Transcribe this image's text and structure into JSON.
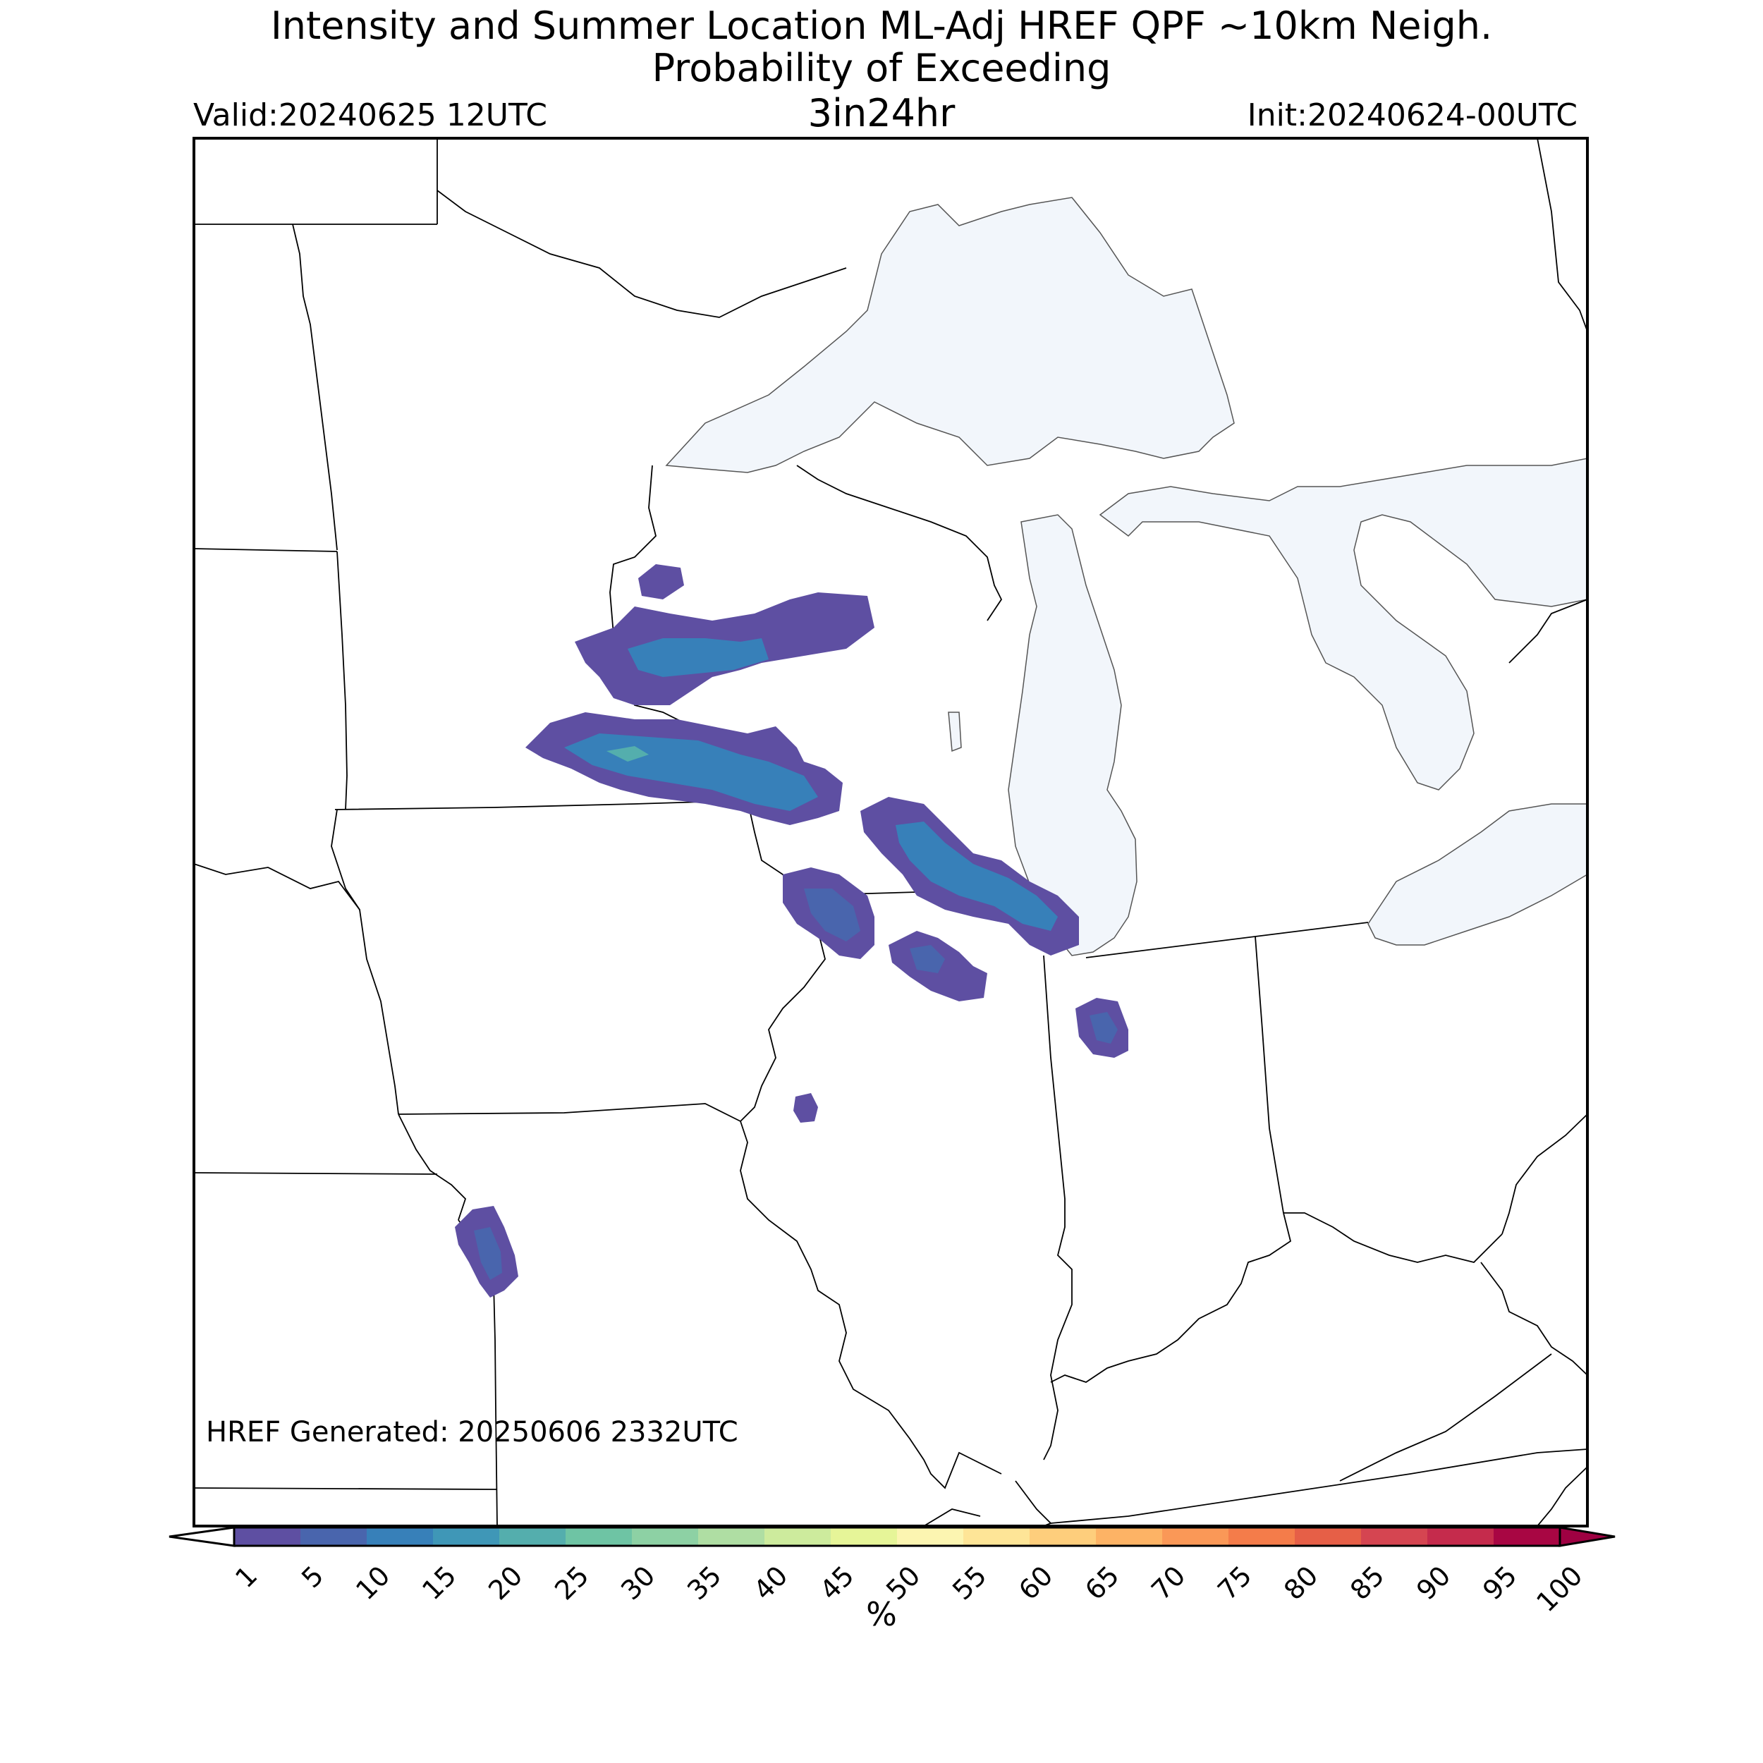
{
  "title": {
    "line1": "Intensity and Summer Location ML-Adj HREF QPF ~10km Neigh.",
    "line2": "Probability of Exceeding",
    "line3": "3in24hr"
  },
  "valid": "Valid:20240625 12UTC",
  "init": "Init:20240624-00UTC",
  "generated": "HREF Generated: 20250606 2332UTC",
  "colorbar": {
    "label": "%",
    "ticks": [
      "1",
      "5",
      "10",
      "15",
      "20",
      "25",
      "30",
      "35",
      "40",
      "45",
      "50",
      "55",
      "60",
      "65",
      "70",
      "75",
      "80",
      "85",
      "90",
      "95",
      "100"
    ],
    "colors": [
      "#5e4fa2",
      "#4965ad",
      "#3780b9",
      "#3f97b7",
      "#54aead",
      "#6ec4a4",
      "#8dd1a4",
      "#afdea3",
      "#cdeb9d",
      "#e6f598",
      "#fcf5b1",
      "#fee597",
      "#fece7c",
      "#fdb365",
      "#fa9857",
      "#f47c4a",
      "#e65f47",
      "#d54551",
      "#c52b4c",
      "#a80643"
    ],
    "over_color": "#9e0142"
  },
  "map": {
    "land_color": "#ffffff",
    "water_color": "#f2f6fb",
    "border_color": "#000000"
  }
}
